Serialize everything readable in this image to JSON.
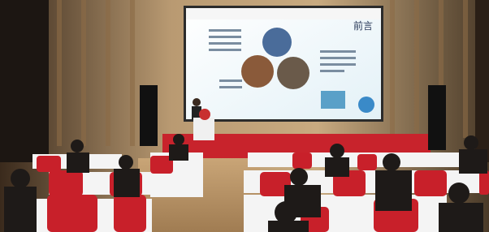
{
  "screen": {
    "heading": "前言"
  }
}
